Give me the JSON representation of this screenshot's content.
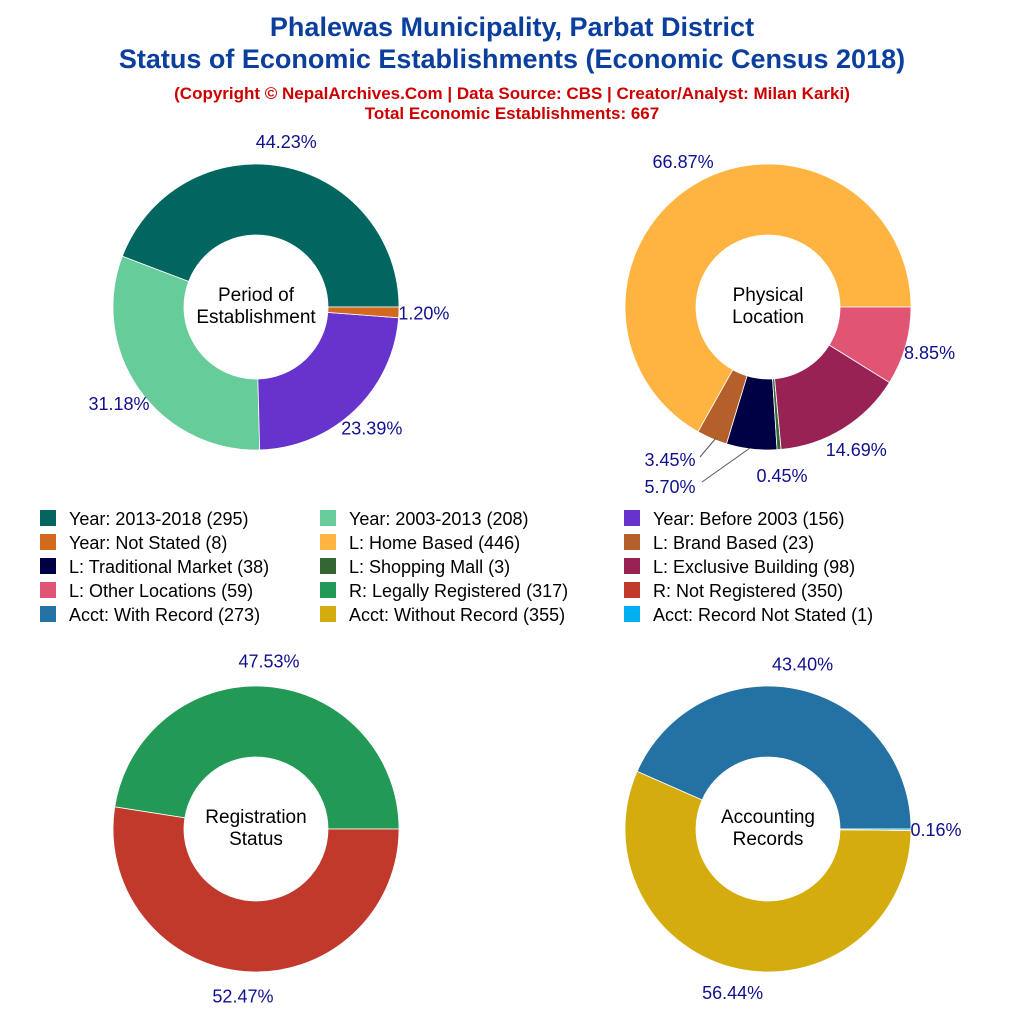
{
  "title": "Phalewas Municipality, Parbat District",
  "subtitle": "Status of Economic Establishments (Economic Census 2018)",
  "copyright": "(Copyright © NepalArchives.Com | Data Source: CBS | Creator/Analyst: Milan Karki)",
  "total": "Total Economic Establishments: 667",
  "legend": [
    {
      "label": "Year: 2013-2018 (295)",
      "color": "#00665F"
    },
    {
      "label": "Year: 2003-2013 (208)",
      "color": "#66CC99"
    },
    {
      "label": "Year: Before 2003 (156)",
      "color": "#6633CC"
    },
    {
      "label": "Year: Not Stated (8)",
      "color": "#D2691E"
    },
    {
      "label": "L: Home Based (446)",
      "color": "#FFB340"
    },
    {
      "label": "L: Brand Based (23)",
      "color": "#B5602A"
    },
    {
      "label": "L: Traditional Market (38)",
      "color": "#000044"
    },
    {
      "label": "L: Shopping Mall (3)",
      "color": "#336633"
    },
    {
      "label": "L: Exclusive Building (98)",
      "color": "#992255"
    },
    {
      "label": "L: Other Locations (59)",
      "color": "#E05573"
    },
    {
      "label": "R: Legally Registered (317)",
      "color": "#229955"
    },
    {
      "label": "R: Not Registered (350)",
      "color": "#C0392B"
    },
    {
      "label": "Acct: With Record (273)",
      "color": "#2471A3"
    },
    {
      "label": "Acct: Without Record (355)",
      "color": "#D4AC0D"
    },
    {
      "label": "Acct: Record Not Stated (1)",
      "color": "#00B0F0"
    }
  ],
  "chart_data": [
    {
      "type": "pie",
      "donut": true,
      "center_label": [
        "Period of",
        "Establishment"
      ],
      "categories": [
        "Year: 2013-2018",
        "Year: 2003-2013",
        "Year: Before 2003",
        "Year: Not Stated"
      ],
      "values": [
        295,
        208,
        156,
        8
      ],
      "labels": [
        "44.23%",
        "31.18%",
        "23.39%",
        "1.20%"
      ],
      "colors": [
        "#00665F",
        "#66CC99",
        "#6633CC",
        "#D2691E"
      ]
    },
    {
      "type": "pie",
      "donut": true,
      "center_label": [
        "Physical",
        "Location"
      ],
      "categories": [
        "L: Home Based",
        "L: Brand Based",
        "L: Traditional Market",
        "L: Shopping Mall",
        "L: Exclusive Building",
        "L: Other Locations"
      ],
      "values": [
        446,
        23,
        38,
        3,
        98,
        59
      ],
      "labels": [
        "66.87%",
        "3.45%",
        "5.70%",
        "0.45%",
        "14.69%",
        "8.85%"
      ],
      "colors": [
        "#FFB340",
        "#B5602A",
        "#000044",
        "#336633",
        "#992255",
        "#E05573"
      ]
    },
    {
      "type": "pie",
      "donut": true,
      "center_label": [
        "Registration",
        "Status"
      ],
      "categories": [
        "R: Legally Registered",
        "R: Not Registered"
      ],
      "values": [
        317,
        350
      ],
      "labels": [
        "47.53%",
        "52.47%"
      ],
      "colors": [
        "#229955",
        "#C0392B"
      ]
    },
    {
      "type": "pie",
      "donut": true,
      "center_label": [
        "Accounting",
        "Records"
      ],
      "categories": [
        "Acct: With Record",
        "Acct: Without Record",
        "Acct: Record Not Stated"
      ],
      "values": [
        273,
        355,
        1
      ],
      "labels": [
        "43.40%",
        "56.44%",
        "0.16%"
      ],
      "colors": [
        "#2471A3",
        "#D4AC0D",
        "#00B0F0"
      ]
    }
  ]
}
